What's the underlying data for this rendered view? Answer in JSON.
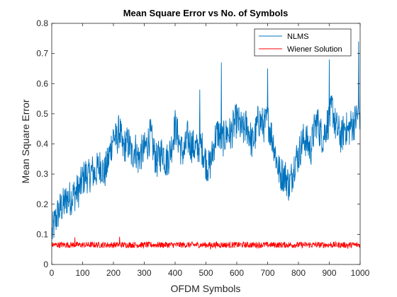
{
  "chart_data": {
    "type": "line",
    "title": "Mean Square Error vs No. of Symbols",
    "xlabel": "OFDM Symbols",
    "ylabel": "Mean Square Error",
    "xlim": [
      0,
      1000
    ],
    "ylim": [
      0,
      0.8
    ],
    "xticks": [
      "0",
      "100",
      "200",
      "300",
      "400",
      "500",
      "600",
      "700",
      "800",
      "900",
      "1000"
    ],
    "yticks": [
      "0",
      "0.1",
      "0.2",
      "0.3",
      "0.4",
      "0.5",
      "0.6",
      "0.7",
      "0.8"
    ],
    "grid": false,
    "legend_position": "top-right",
    "series": [
      {
        "name": "NLMS",
        "color": "#0072BD",
        "x": [
          0,
          10,
          20,
          30,
          40,
          50,
          60,
          70,
          80,
          90,
          100,
          110,
          120,
          130,
          140,
          150,
          160,
          170,
          180,
          190,
          200,
          210,
          220,
          230,
          240,
          250,
          260,
          270,
          280,
          290,
          300,
          310,
          320,
          330,
          340,
          350,
          360,
          370,
          380,
          390,
          400,
          410,
          420,
          430,
          440,
          450,
          460,
          470,
          480,
          490,
          500,
          510,
          520,
          530,
          540,
          550,
          560,
          570,
          580,
          590,
          600,
          610,
          620,
          630,
          640,
          650,
          660,
          670,
          680,
          690,
          700,
          710,
          720,
          730,
          740,
          750,
          760,
          770,
          780,
          790,
          800,
          810,
          820,
          830,
          840,
          850,
          860,
          870,
          880,
          890,
          900,
          910,
          920,
          930,
          940,
          950,
          960,
          970,
          980,
          990,
          1000
        ],
        "values": [
          0.1,
          0.14,
          0.17,
          0.19,
          0.2,
          0.22,
          0.22,
          0.23,
          0.24,
          0.25,
          0.28,
          0.3,
          0.29,
          0.31,
          0.3,
          0.32,
          0.33,
          0.3,
          0.33,
          0.38,
          0.43,
          0.41,
          0.45,
          0.38,
          0.4,
          0.4,
          0.36,
          0.39,
          0.35,
          0.37,
          0.38,
          0.4,
          0.43,
          0.38,
          0.34,
          0.36,
          0.38,
          0.34,
          0.36,
          0.4,
          0.46,
          0.42,
          0.38,
          0.37,
          0.42,
          0.4,
          0.39,
          0.38,
          0.4,
          0.38,
          0.34,
          0.32,
          0.36,
          0.42,
          0.44,
          0.41,
          0.42,
          0.44,
          0.43,
          0.46,
          0.48,
          0.46,
          0.44,
          0.46,
          0.44,
          0.4,
          0.43,
          0.48,
          0.47,
          0.46,
          0.48,
          0.44,
          0.4,
          0.34,
          0.3,
          0.3,
          0.29,
          0.26,
          0.3,
          0.35,
          0.36,
          0.4,
          0.42,
          0.4,
          0.38,
          0.44,
          0.48,
          0.44,
          0.42,
          0.46,
          0.48,
          0.52,
          0.46,
          0.44,
          0.42,
          0.46,
          0.44,
          0.46,
          0.47,
          0.49,
          0.5
        ],
        "noise_amplitude": 0.06,
        "peaks": [
          [
            0,
            0.08
          ],
          [
            480,
            0.58
          ],
          [
            550,
            0.67
          ],
          [
            700,
            0.65
          ],
          [
            900,
            0.68
          ],
          [
            995,
            0.74
          ]
        ]
      },
      {
        "name": "Wiener Solution",
        "color": "#FF0000",
        "x": [
          0,
          100,
          200,
          300,
          400,
          500,
          600,
          700,
          800,
          900,
          1000
        ],
        "values": [
          0.065,
          0.065,
          0.065,
          0.065,
          0.065,
          0.065,
          0.065,
          0.065,
          0.065,
          0.065,
          0.065
        ],
        "noise_amplitude": 0.01,
        "peaks": [
          [
            75,
            0.09
          ],
          [
            220,
            0.092
          ],
          [
            515,
            0.05
          ],
          [
            960,
            0.052
          ]
        ]
      }
    ]
  }
}
